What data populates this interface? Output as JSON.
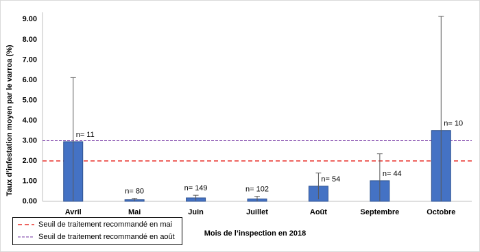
{
  "chart_data": {
    "type": "bar",
    "y_label": "Taux d’infestation moyen par le varroa (%)",
    "x_label": "Mois de l’inspection en 2018",
    "categories": [
      "Avril",
      "Mai",
      "Juin",
      "Juillet",
      "Août",
      "Septembre",
      "Octobre"
    ],
    "values": [
      2.95,
      0.08,
      0.17,
      0.12,
      0.75,
      1.02,
      3.5
    ],
    "errors": [
      3.17,
      0.07,
      0.13,
      0.13,
      0.65,
      1.33,
      5.65
    ],
    "annotations": [
      "n= 11",
      "n= 80",
      "n= 149",
      "n= 102",
      "n= 54",
      "n= 44",
      "n= 10"
    ],
    "color": "#4472c4",
    "reference_lines": [
      {
        "name": "Seuil de traitement recommandé en mai",
        "value": 2,
        "color": "#e8312a"
      },
      {
        "name": "Seuil de traitement recommandé en août",
        "value": 3,
        "color": "#7030a0"
      }
    ],
    "ylim": [
      0,
      9.35
    ],
    "yticks": [
      {
        "value": 0,
        "label": "0.00"
      },
      {
        "value": 1,
        "label": "1.00"
      },
      {
        "value": 2,
        "label": "2.00"
      },
      {
        "value": 3,
        "label": "3.00"
      },
      {
        "value": 4,
        "label": "4.00"
      },
      {
        "value": 5,
        "label": "5.00"
      },
      {
        "value": 6,
        "label": "6.00"
      },
      {
        "value": 7,
        "label": "7.00"
      },
      {
        "value": 8,
        "label": "8.00"
      },
      {
        "value": 9,
        "label": "9.00"
      }
    ],
    "grid": false
  }
}
